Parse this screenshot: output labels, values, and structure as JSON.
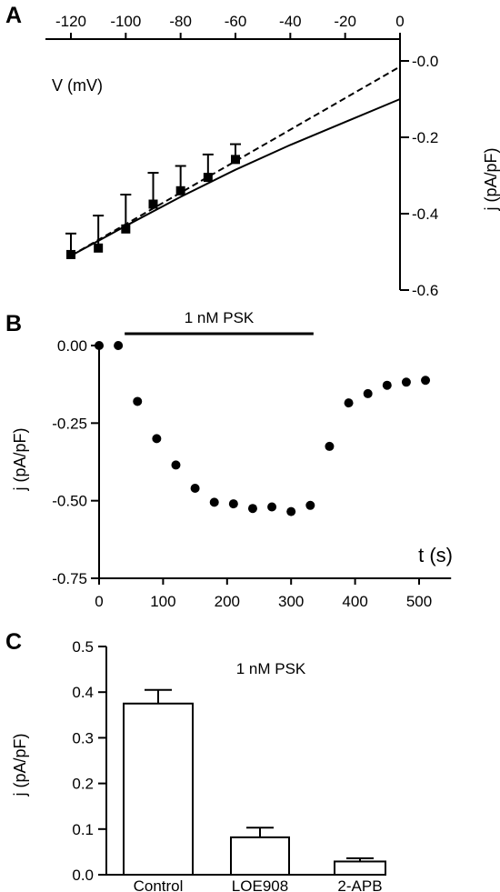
{
  "panels": {
    "a": {
      "letter": "A"
    },
    "b": {
      "letter": "B"
    },
    "c": {
      "letter": "C"
    }
  },
  "chart_data": [
    {
      "type": "line",
      "panel": "A",
      "xlabel": "V (mV)",
      "ylabel": "j (pA/pF)",
      "xlim": [
        -120,
        0
      ],
      "ylim": [
        -0.6,
        0.0
      ],
      "xticks": [
        -120,
        -100,
        -80,
        -60,
        -40,
        -20,
        0
      ],
      "yticks": [
        -0.6,
        -0.4,
        -0.2,
        -0.0
      ],
      "ytick_labels": [
        "-0.6",
        "-0.4",
        "-0.2",
        "-0.0"
      ],
      "x_axis_position": "top",
      "y_axis_position": "right",
      "grid": false,
      "series": [
        {
          "style": "markers with error bars",
          "x": [
            -120,
            -110,
            -100,
            -90,
            -80,
            -70,
            -60
          ],
          "y": [
            -0.507,
            -0.49,
            -0.44,
            -0.375,
            -0.34,
            -0.305,
            -0.258
          ],
          "err": [
            0.055,
            0.085,
            0.09,
            0.082,
            0.065,
            0.06,
            0.04
          ]
        },
        {
          "style": "dashed linear fit",
          "x": [
            -120,
            0
          ],
          "y": [
            -0.51,
            -0.015
          ]
        },
        {
          "style": "solid ramp trace",
          "x": [
            -120,
            -100,
            -80,
            -60,
            -40,
            -20,
            0
          ],
          "y": [
            -0.51,
            -0.432,
            -0.356,
            -0.285,
            -0.22,
            -0.16,
            -0.1
          ]
        }
      ]
    },
    {
      "type": "scatter",
      "panel": "B",
      "xlabel": "t (s)",
      "ylabel": "j (pA/pF)",
      "xlim": [
        0,
        550
      ],
      "ylim": [
        -0.75,
        0.0
      ],
      "xticks": [
        0,
        100,
        200,
        300,
        400,
        500
      ],
      "yticks": [
        0.0,
        -0.25,
        -0.5,
        -0.75
      ],
      "ytick_labels": [
        "0.00",
        "-0.25",
        "-0.50",
        "-0.75"
      ],
      "grid": false,
      "annotation": {
        "label": "1 nM PSK",
        "x_start": 40,
        "x_end": 335
      },
      "x": [
        0,
        30,
        60,
        90,
        120,
        150,
        180,
        210,
        240,
        270,
        300,
        330,
        360,
        390,
        420,
        450,
        480,
        510
      ],
      "y": [
        0.0,
        0.0,
        -0.18,
        -0.3,
        -0.385,
        -0.46,
        -0.505,
        -0.51,
        -0.525,
        -0.52,
        -0.535,
        -0.515,
        -0.325,
        -0.185,
        -0.155,
        -0.128,
        -0.118,
        -0.112
      ]
    },
    {
      "type": "bar",
      "panel": "C",
      "title": "1 nM PSK",
      "ylabel": "j (pA/pF)",
      "ylim": [
        0.0,
        0.5
      ],
      "yticks": [
        0.0,
        0.1,
        0.2,
        0.3,
        0.4,
        0.5
      ],
      "ytick_labels": [
        "0.0",
        "0.1",
        "0.2",
        "0.3",
        "0.4",
        "0.5"
      ],
      "grid": false,
      "categories": [
        "Control",
        "LOE908",
        "2-APB"
      ],
      "values": [
        0.375,
        0.082,
        0.029
      ],
      "errors": [
        0.03,
        0.021,
        0.007
      ]
    }
  ]
}
